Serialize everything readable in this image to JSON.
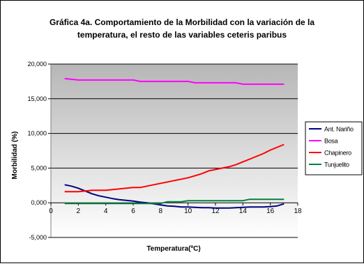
{
  "chart_data": {
    "type": "line",
    "title": "Gráfica 4a. Comportamiento de la Morbilidad con la variación de la temperatura, el resto de las variables ceteris paribus",
    "title_lines": [
      "Gráfica 4a. Comportamiento de la Morbilidad con la variación de la",
      "temperatura, el resto de las variables ceteris paribus"
    ],
    "xlabel": "Temperatura(ºC)",
    "ylabel": "Morbilidad (%)",
    "xlim": [
      0,
      18
    ],
    "ylim": [
      -5,
      20
    ],
    "x_ticks": [
      0,
      2,
      4,
      6,
      8,
      10,
      12,
      14,
      16,
      18
    ],
    "x_tick_labels": [
      "0",
      "2",
      "4",
      "6",
      "8",
      "10",
      "12",
      "14",
      "16",
      "18"
    ],
    "y_ticks": [
      -5,
      0,
      5,
      10,
      15,
      20
    ],
    "y_tick_labels": [
      "-5,000",
      "0,000",
      "5,000",
      "10,000",
      "15,000",
      "20,000"
    ],
    "grid": "horizontal",
    "plot_background": "gradient-gray",
    "legend_position": "right",
    "x": [
      1,
      1.5,
      2,
      2.5,
      3,
      3.5,
      4,
      4.5,
      5,
      5.5,
      6,
      6.5,
      7,
      7.5,
      8,
      8.5,
      9,
      9.5,
      10,
      10.5,
      11,
      11.5,
      12,
      12.5,
      13,
      13.5,
      14,
      14.5,
      15,
      15.5,
      16,
      16.5,
      17
    ],
    "series": [
      {
        "name": "Ant. Nariño",
        "color": "#000080",
        "values": [
          2.6,
          2.4,
          2.1,
          1.7,
          1.3,
          1.0,
          0.8,
          0.6,
          0.45,
          0.35,
          0.25,
          0.1,
          0.0,
          -0.15,
          -0.3,
          -0.45,
          -0.5,
          -0.6,
          -0.6,
          -0.65,
          -0.7,
          -0.7,
          -0.75,
          -0.75,
          -0.75,
          -0.7,
          -0.65,
          -0.6,
          -0.6,
          -0.6,
          -0.55,
          -0.45,
          -0.15
        ]
      },
      {
        "name": "Bosa",
        "color": "#ff00ff",
        "values": [
          17.9,
          17.8,
          17.7,
          17.7,
          17.7,
          17.7,
          17.7,
          17.7,
          17.7,
          17.7,
          17.7,
          17.5,
          17.5,
          17.5,
          17.5,
          17.5,
          17.5,
          17.5,
          17.5,
          17.3,
          17.3,
          17.3,
          17.3,
          17.3,
          17.3,
          17.3,
          17.1,
          17.1,
          17.1,
          17.1,
          17.1,
          17.1,
          17.1
        ]
      },
      {
        "name": "Chapinero",
        "color": "#ff0000",
        "values": [
          1.6,
          1.6,
          1.6,
          1.7,
          1.8,
          1.8,
          1.8,
          1.9,
          2.0,
          2.1,
          2.2,
          2.2,
          2.4,
          2.6,
          2.8,
          3.0,
          3.2,
          3.4,
          3.6,
          3.9,
          4.2,
          4.6,
          4.8,
          5.0,
          5.2,
          5.5,
          5.9,
          6.3,
          6.7,
          7.1,
          7.6,
          8.0,
          8.4
        ]
      },
      {
        "name": "Tunjuelito",
        "color": "#008040",
        "values": [
          -0.1,
          -0.1,
          -0.1,
          -0.1,
          -0.1,
          -0.1,
          -0.1,
          -0.1,
          -0.1,
          -0.1,
          -0.1,
          -0.1,
          -0.1,
          -0.1,
          -0.1,
          0.15,
          0.15,
          0.15,
          0.3,
          0.3,
          0.3,
          0.3,
          0.3,
          0.3,
          0.3,
          0.3,
          0.3,
          0.5,
          0.5,
          0.5,
          0.5,
          0.5,
          0.5
        ]
      }
    ]
  }
}
